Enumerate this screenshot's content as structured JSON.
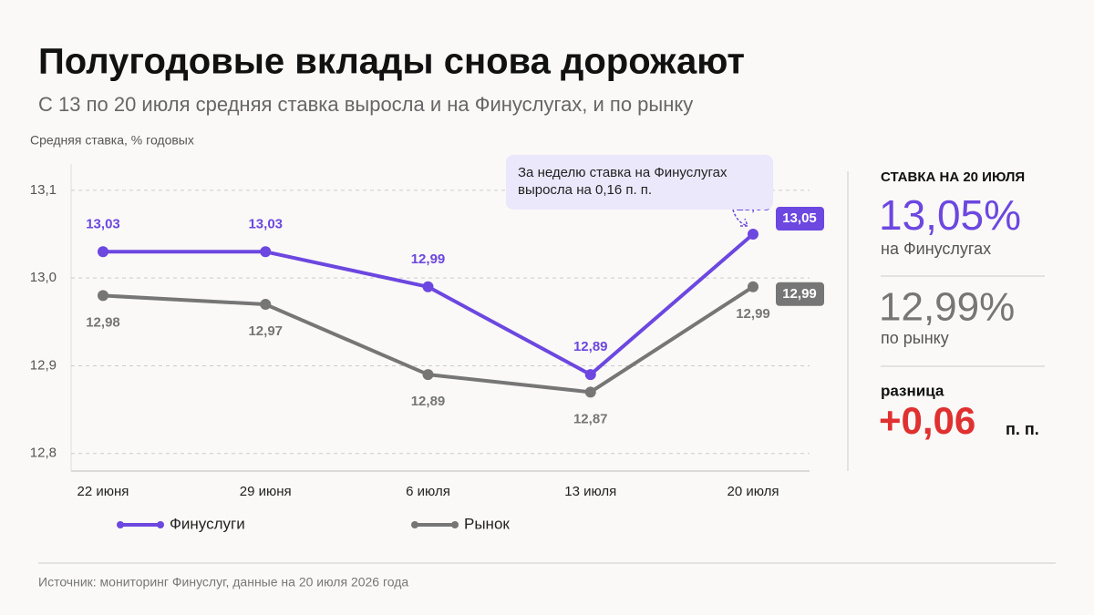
{
  "chart_data": {
    "type": "line",
    "title": "Полугодовые вклады снова дорожают",
    "subtitle": "С 13 по 20 июля средняя ставка выросла и на Финуслугах, и по рынку",
    "y_label": "Средняя ставка, % годовых",
    "categories": [
      "22 июня",
      "29 июня",
      "6 июля",
      "13 июля",
      "20 июля"
    ],
    "series": [
      {
        "name": "Финуслуги",
        "color": "#6c47e0",
        "values": [
          13.03,
          13.03,
          12.99,
          12.89,
          13.05
        ],
        "value_labels": [
          "13,03",
          "13,03",
          "12,99",
          "12,89",
          "13,05"
        ]
      },
      {
        "name": "Рынок",
        "color": "#767676",
        "values": [
          12.98,
          12.97,
          12.89,
          12.87,
          12.99
        ],
        "value_labels": [
          "12,98",
          "12,97",
          "12,89",
          "12,87",
          "12,99"
        ]
      }
    ],
    "ylim": [
      12.78,
      13.13
    ],
    "yticks": [
      {
        "value": 12.8,
        "label": "12,8"
      },
      {
        "value": 12.9,
        "label": "12,9"
      },
      {
        "value": 13.0,
        "label": "13,0"
      },
      {
        "value": 13.1,
        "label": "13,1"
      }
    ],
    "grid": true,
    "annotation": [
      "За неделю ставка на Финуслугах",
      "выросла на 0,16 п. п."
    ],
    "source": "Источник: мониторинг Финуслуг, данные на 20 июля 2026 года"
  },
  "side_panel": {
    "heading": "СТАВКА НА 20 ИЮЛЯ",
    "finuslugi_rate": "13,05%",
    "finuslugi_caption": "на Финуслугах",
    "market_rate": "12,99%",
    "market_caption": "по рынку",
    "diff_caption": "разница",
    "diff_value": "+0,06",
    "diff_unit": "п. п."
  }
}
